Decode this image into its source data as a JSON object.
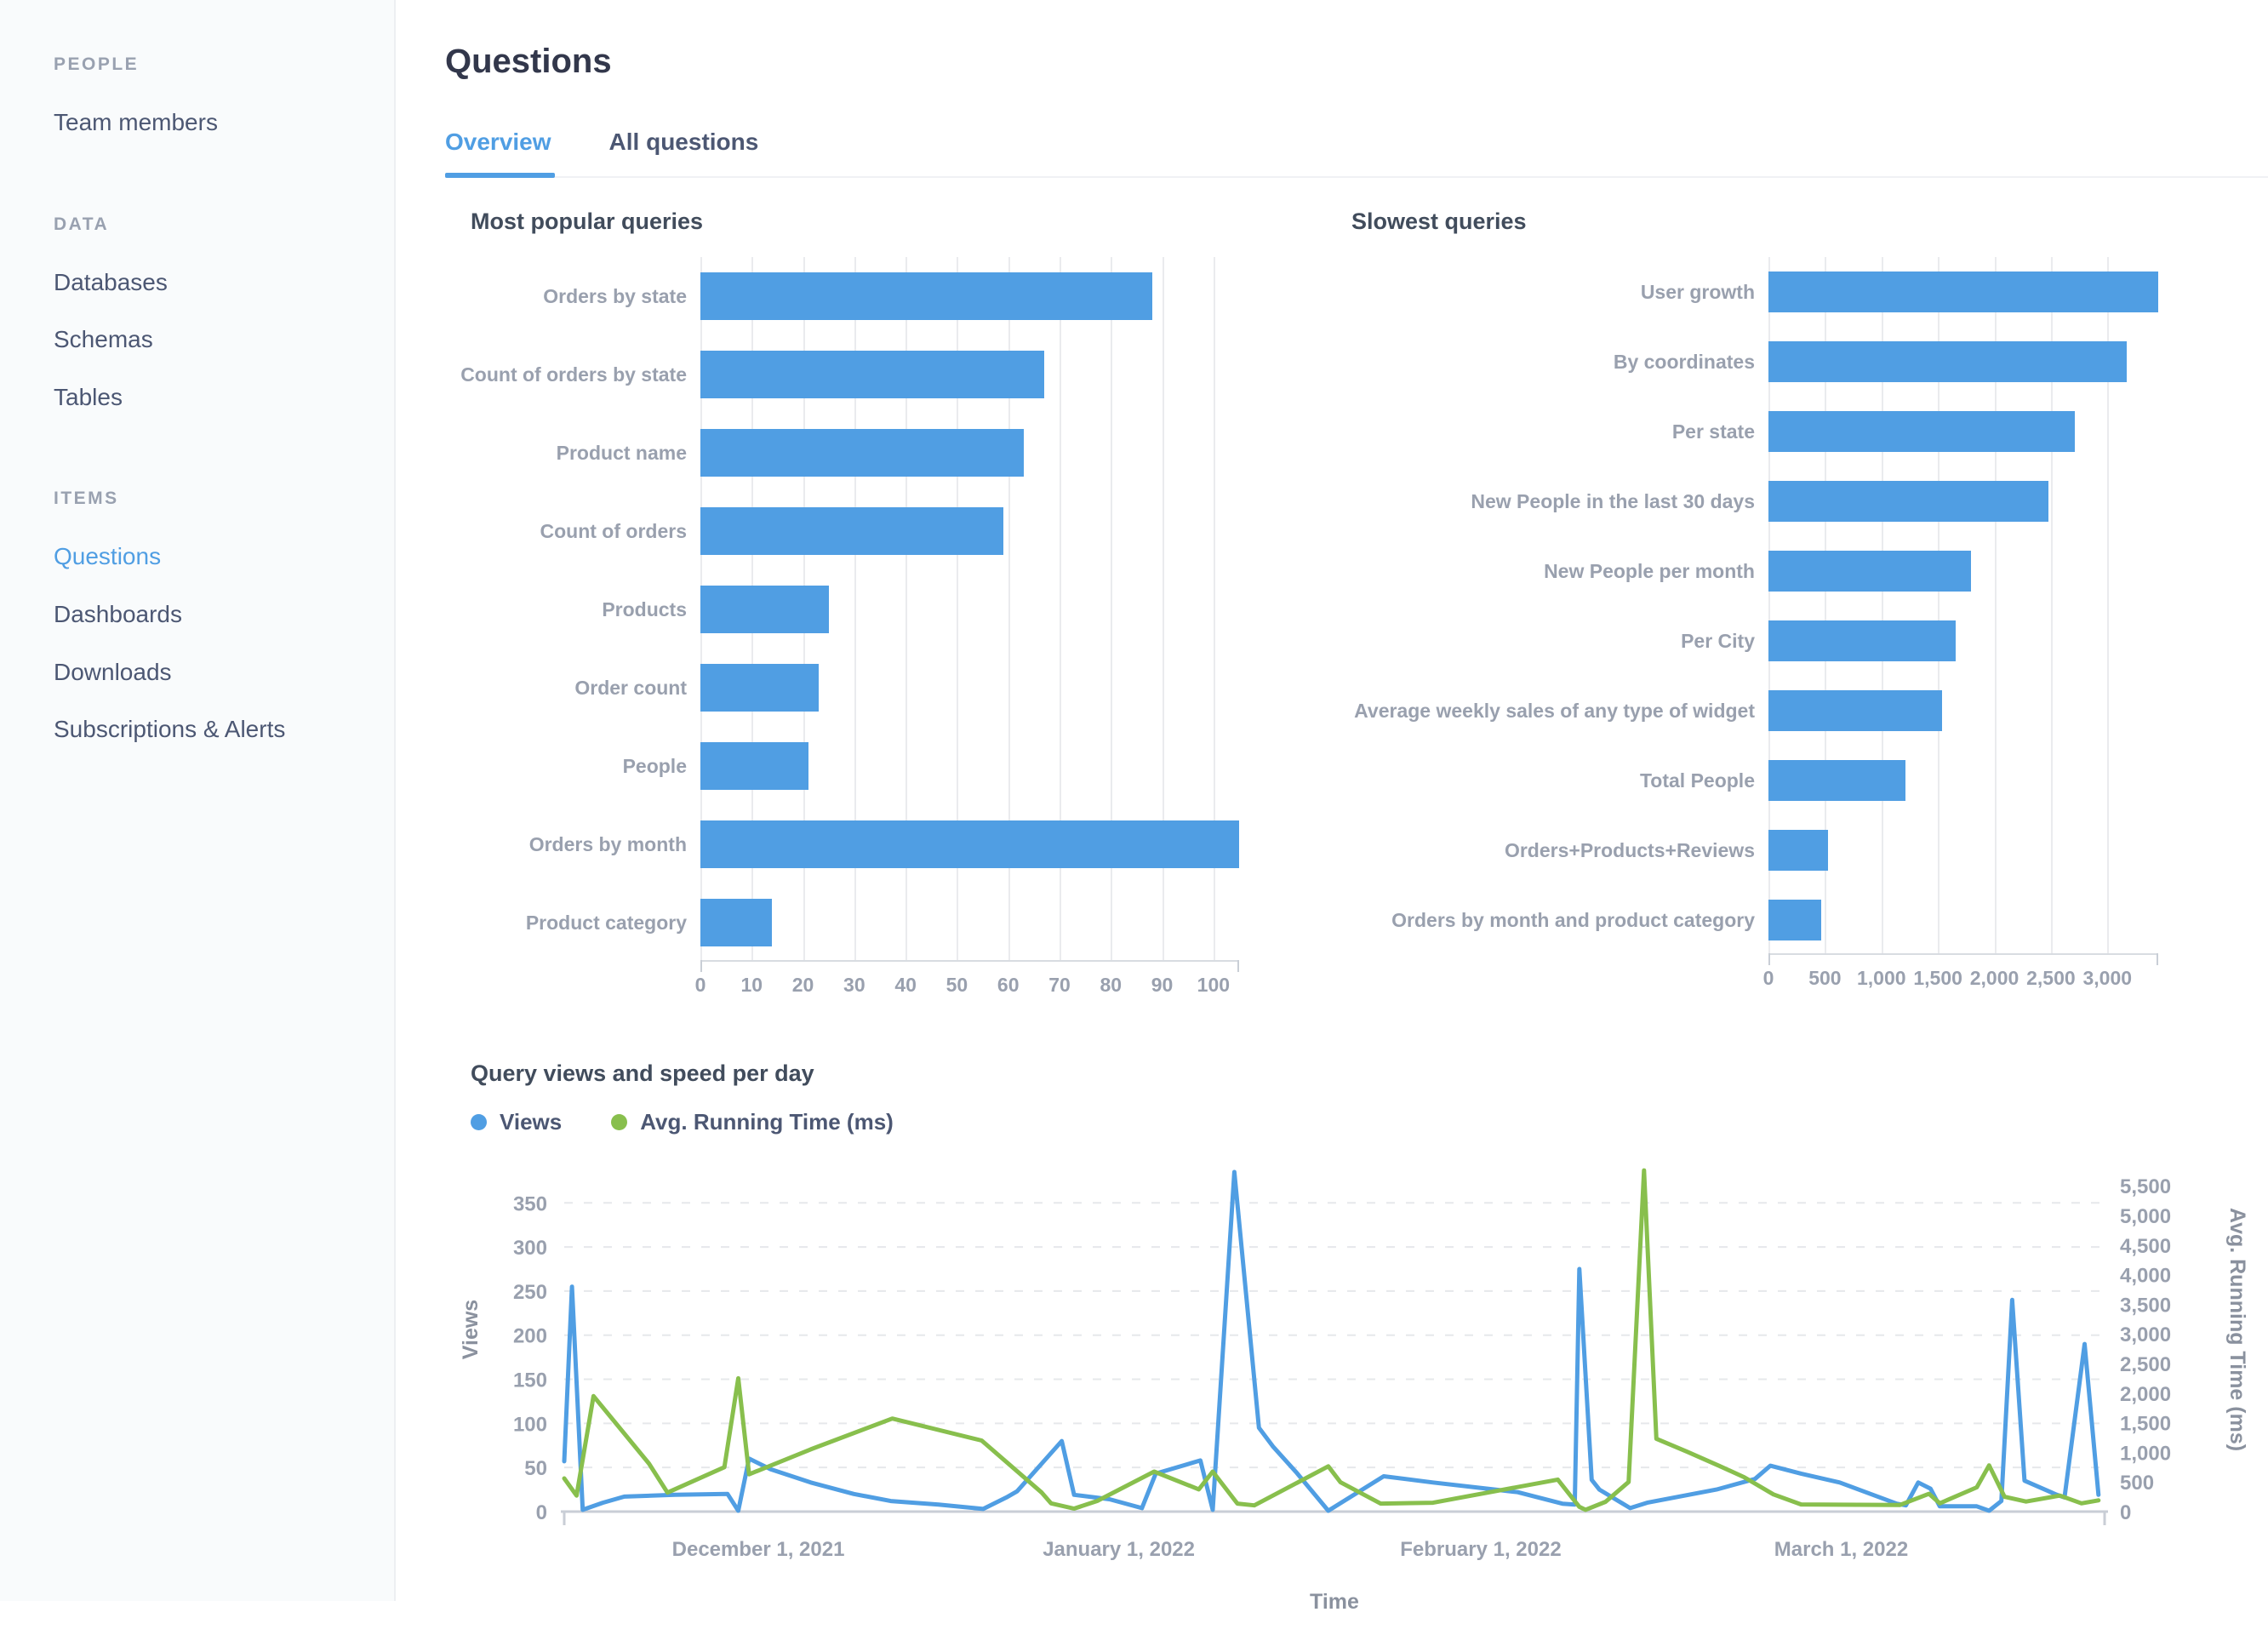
{
  "header": {
    "title": "Questions",
    "tabs": [
      {
        "label": "Overview",
        "active": true
      },
      {
        "label": "All questions",
        "active": false
      }
    ]
  },
  "sidebar": {
    "sections": [
      {
        "header": "PEOPLE",
        "items": [
          {
            "label": "Team members",
            "active": false
          }
        ]
      },
      {
        "header": "DATA",
        "items": [
          {
            "label": "Databases",
            "active": false
          },
          {
            "label": "Schemas",
            "active": false
          },
          {
            "label": "Tables",
            "active": false
          }
        ]
      },
      {
        "header": "ITEMS",
        "items": [
          {
            "label": "Questions",
            "active": true
          },
          {
            "label": "Dashboards",
            "active": false
          },
          {
            "label": "Downloads",
            "active": false
          },
          {
            "label": "Subscriptions & Alerts",
            "active": false
          }
        ]
      }
    ]
  },
  "colors": {
    "accent": "#509EE3",
    "green": "#88BF4D",
    "label_gray": "#99A0AE",
    "dark_text": "#4C5773"
  },
  "chart_data": [
    {
      "type": "bar",
      "orientation": "horizontal",
      "title": "Most popular queries",
      "categories": [
        "Orders by state",
        "Count of orders by state",
        "Product name",
        "Count of orders",
        "Products",
        "Order count",
        "People",
        "Orders by month",
        "Product category"
      ],
      "values": [
        88,
        67,
        63,
        59,
        25,
        23,
        21,
        105,
        14
      ],
      "bar_color": "#509EE3",
      "xlim": [
        0,
        105
      ],
      "x_ticks": [
        {
          "v": 0,
          "label": "0"
        },
        {
          "v": 10,
          "label": "10"
        },
        {
          "v": 20,
          "label": "20"
        },
        {
          "v": 30,
          "label": "30"
        },
        {
          "v": 40,
          "label": "40"
        },
        {
          "v": 50,
          "label": "50"
        },
        {
          "v": 60,
          "label": "60"
        },
        {
          "v": 70,
          "label": "70"
        },
        {
          "v": 80,
          "label": "80"
        },
        {
          "v": 90,
          "label": "90"
        },
        {
          "v": 100,
          "label": "100"
        }
      ],
      "grid": true
    },
    {
      "type": "bar",
      "orientation": "horizontal",
      "title": "Slowest queries",
      "categories": [
        "User growth",
        "By coordinates",
        "Per state",
        "New People in the last 30 days",
        "New People per month",
        "Per City",
        "Average weekly sales of any type of widget",
        "Total People",
        "Orders+Products+Reviews",
        "Orders by month and product category"
      ],
      "values": [
        3450,
        3170,
        2710,
        2480,
        1790,
        1660,
        1540,
        1215,
        530,
        465
      ],
      "bar_color": "#509EE3",
      "xlim": [
        0,
        3450
      ],
      "x_ticks": [
        {
          "v": 0,
          "label": "0"
        },
        {
          "v": 500,
          "label": "500"
        },
        {
          "v": 1000,
          "label": "1,000"
        },
        {
          "v": 1500,
          "label": "1,500"
        },
        {
          "v": 2000,
          "label": "2,000"
        },
        {
          "v": 2500,
          "label": "2,500"
        },
        {
          "v": 3000,
          "label": "3,000"
        }
      ],
      "grid": true
    },
    {
      "type": "line",
      "title": "Query views and speed per day",
      "xlabel": "Time",
      "legend_position": "top-left",
      "grid": "dashed-horizontal",
      "y_left": {
        "label": "Views",
        "ticks": [
          0,
          50,
          100,
          150,
          200,
          250,
          300,
          350
        ],
        "max": 413
      },
      "y_right": {
        "label": "Avg. Running Time (ms)",
        "tick_labels": [
          "0",
          "500",
          "1,000",
          "1,500",
          "2,000",
          "2,500",
          "3,000",
          "3,500",
          "4,000",
          "4,500",
          "5,000",
          "5,500"
        ],
        "tick_step": 500,
        "max": 6150
      },
      "x_ticks": [
        {
          "pos": 0.126,
          "label": "December 1, 2021"
        },
        {
          "pos": 0.36,
          "label": "January 1, 2022"
        },
        {
          "pos": 0.595,
          "label": "February 1, 2022"
        },
        {
          "pos": 0.829,
          "label": "March 1, 2022"
        }
      ],
      "series": [
        {
          "name": "Views",
          "color": "#509EE3",
          "axis": "left",
          "points": [
            [
              0.0,
              57
            ],
            [
              0.005,
              255
            ],
            [
              0.012,
              2
            ],
            [
              0.025,
              10
            ],
            [
              0.039,
              17
            ],
            [
              0.072,
              19
            ],
            [
              0.106,
              20
            ],
            [
              0.113,
              1
            ],
            [
              0.12,
              60
            ],
            [
              0.134,
              48
            ],
            [
              0.16,
              33
            ],
            [
              0.188,
              20
            ],
            [
              0.212,
              12
            ],
            [
              0.243,
              8
            ],
            [
              0.272,
              3
            ],
            [
              0.287,
              16
            ],
            [
              0.294,
              23
            ],
            [
              0.323,
              80
            ],
            [
              0.331,
              19
            ],
            [
              0.354,
              14
            ],
            [
              0.375,
              4
            ],
            [
              0.384,
              43
            ],
            [
              0.413,
              58
            ],
            [
              0.421,
              2
            ],
            [
              0.435,
              385
            ],
            [
              0.451,
              95
            ],
            [
              0.46,
              74
            ],
            [
              0.475,
              45
            ],
            [
              0.496,
              1
            ],
            [
              0.532,
              40
            ],
            [
              0.564,
              33
            ],
            [
              0.619,
              22
            ],
            [
              0.648,
              9
            ],
            [
              0.656,
              8
            ],
            [
              0.659,
              275
            ],
            [
              0.667,
              36
            ],
            [
              0.672,
              25
            ],
            [
              0.692,
              4
            ],
            [
              0.703,
              10
            ],
            [
              0.748,
              25
            ],
            [
              0.773,
              37
            ],
            [
              0.783,
              52
            ],
            [
              0.803,
              43
            ],
            [
              0.828,
              33
            ],
            [
              0.865,
              9
            ],
            [
              0.871,
              7
            ],
            [
              0.879,
              33
            ],
            [
              0.887,
              26
            ],
            [
              0.893,
              6
            ],
            [
              0.917,
              6
            ],
            [
              0.925,
              1
            ],
            [
              0.933,
              12
            ],
            [
              0.94,
              240
            ],
            [
              0.948,
              35
            ],
            [
              0.969,
              19
            ],
            [
              0.974,
              16
            ],
            [
              0.987,
              190
            ],
            [
              0.996,
              19
            ]
          ]
        },
        {
          "name": "Avg. Running Time (ms)",
          "color": "#88BF4D",
          "axis": "right",
          "points": [
            [
              0.0,
              560
            ],
            [
              0.008,
              270
            ],
            [
              0.019,
              1950
            ],
            [
              0.055,
              810
            ],
            [
              0.067,
              320
            ],
            [
              0.104,
              750
            ],
            [
              0.113,
              2250
            ],
            [
              0.12,
              630
            ],
            [
              0.16,
              1050
            ],
            [
              0.213,
              1570
            ],
            [
              0.271,
              1200
            ],
            [
              0.31,
              320
            ],
            [
              0.316,
              140
            ],
            [
              0.331,
              50
            ],
            [
              0.346,
              180
            ],
            [
              0.383,
              675
            ],
            [
              0.412,
              375
            ],
            [
              0.421,
              675
            ],
            [
              0.437,
              135
            ],
            [
              0.448,
              105
            ],
            [
              0.496,
              765
            ],
            [
              0.504,
              495
            ],
            [
              0.53,
              135
            ],
            [
              0.564,
              150
            ],
            [
              0.645,
              540
            ],
            [
              0.659,
              80
            ],
            [
              0.663,
              30
            ],
            [
              0.676,
              165
            ],
            [
              0.691,
              500
            ],
            [
              0.701,
              5760
            ],
            [
              0.709,
              1230
            ],
            [
              0.729,
              1010
            ],
            [
              0.75,
              770
            ],
            [
              0.766,
              580
            ],
            [
              0.785,
              290
            ],
            [
              0.803,
              120
            ],
            [
              0.867,
              110
            ],
            [
              0.886,
              300
            ],
            [
              0.893,
              140
            ],
            [
              0.917,
              410
            ],
            [
              0.925,
              780
            ],
            [
              0.935,
              250
            ],
            [
              0.949,
              170
            ],
            [
              0.971,
              270
            ],
            [
              0.985,
              140
            ],
            [
              0.996,
              190
            ]
          ]
        }
      ]
    }
  ]
}
